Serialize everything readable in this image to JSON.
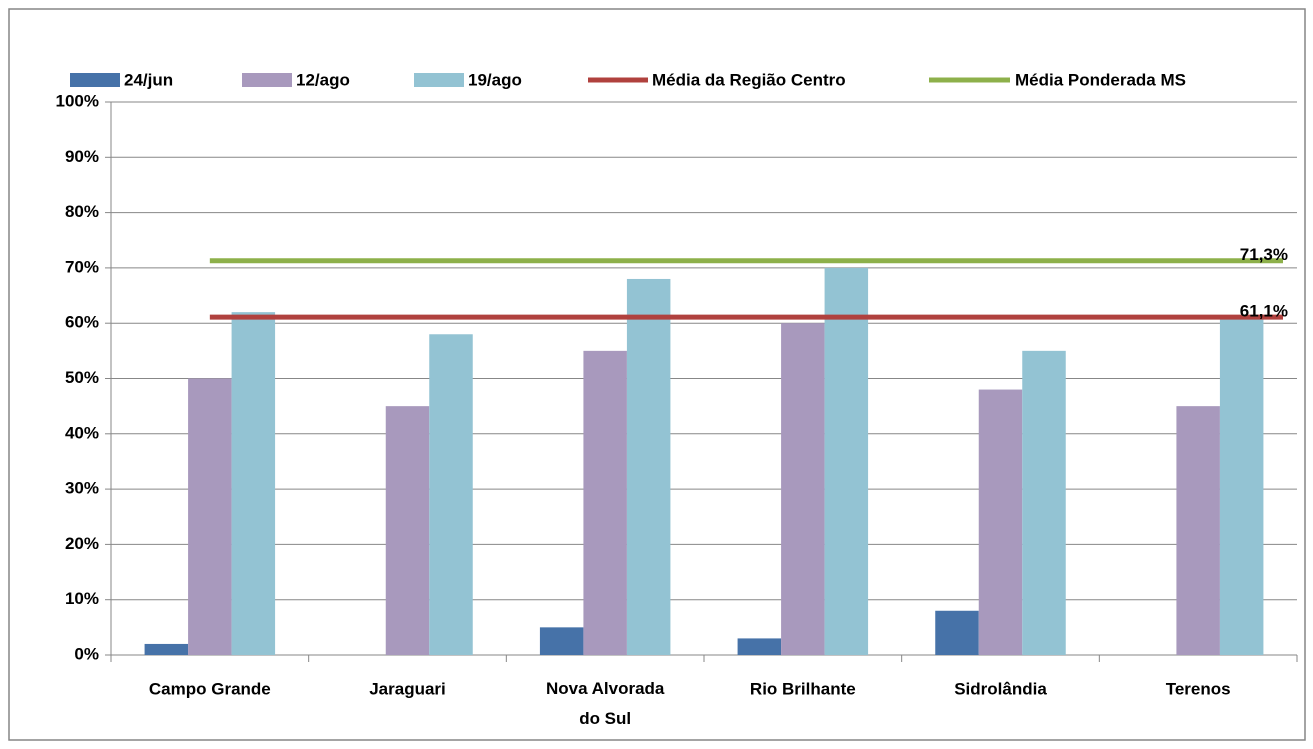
{
  "chart_data": {
    "type": "bar",
    "categories": [
      "Campo Grande",
      "Jaraguari",
      "Nova Alvorada do Sul",
      "Rio Brilhante",
      "Sidrolândia",
      "Terenos"
    ],
    "series": [
      {
        "name": "24/jun",
        "color": "#4672a8",
        "values": [
          2,
          null,
          5,
          3,
          8,
          null
        ]
      },
      {
        "name": "12/ago",
        "color": "#a899bd",
        "values": [
          50,
          45,
          55,
          60,
          48,
          45
        ]
      },
      {
        "name": "19/ago",
        "color": "#93c3d3",
        "values": [
          62,
          58,
          68,
          70,
          55,
          61
        ]
      }
    ],
    "reference_lines": [
      {
        "name": "Média da Região Centro",
        "color": "#b0413e",
        "value": 61.1,
        "value_label": "61,1%"
      },
      {
        "name": "Média Ponderada MS",
        "color": "#8db04a",
        "value": 71.3,
        "value_label": "71,3%"
      }
    ],
    "ylim": [
      0,
      100
    ],
    "yticks": [
      {
        "value": 0,
        "label": "0%"
      },
      {
        "value": 10,
        "label": "10%"
      },
      {
        "value": 20,
        "label": "20%"
      },
      {
        "value": 30,
        "label": "30%"
      },
      {
        "value": 40,
        "label": "40%"
      },
      {
        "value": 50,
        "label": "50%"
      },
      {
        "value": 60,
        "label": "60%"
      },
      {
        "value": 70,
        "label": "70%"
      },
      {
        "value": 80,
        "label": "80%"
      },
      {
        "value": 90,
        "label": "90%"
      },
      {
        "value": 100,
        "label": "100%"
      }
    ],
    "grid": true
  }
}
